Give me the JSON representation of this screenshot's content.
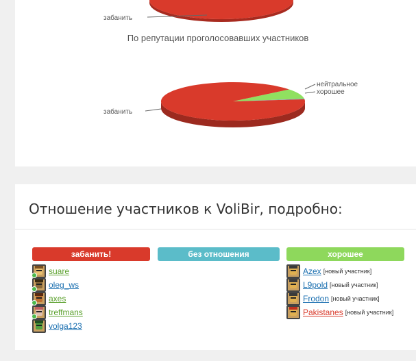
{
  "top_chart": {
    "label": "забанить"
  },
  "chart_data": {
    "type": "pie",
    "title": "По репутации проголосовавших участников",
    "slices": [
      {
        "name": "забанить",
        "value": 91,
        "color": "#d93a2b"
      },
      {
        "name": "нейтральное",
        "value": 0.5,
        "color": "#6ea8c8"
      },
      {
        "name": "хорошее",
        "value": 8.5,
        "color": "#90e060"
      }
    ]
  },
  "details": {
    "title": "Отношение участников к VoliBir, подробно:",
    "columns": [
      {
        "label": "забанить!",
        "color": "#d93a2b",
        "users": [
          {
            "name": "suare",
            "color": "#5aa02c",
            "online": true,
            "skin": "#e8c070",
            "hair": "#7a5020"
          },
          {
            "name": "oleg_ws",
            "color": "#1a6fb0",
            "online": true,
            "skin": "#8a6a3a",
            "hair": "#3a2a10"
          },
          {
            "name": "axes",
            "color": "#5aa02c",
            "online": true,
            "skin": "#c07030",
            "hair": "#5a2a10"
          },
          {
            "name": "treffmans",
            "color": "#5aa02c",
            "online": true,
            "skin": "#e0c0b0",
            "hair": "#c06060"
          },
          {
            "name": "volga123",
            "color": "#1a6fb0",
            "online": false,
            "skin": "#50a040",
            "hair": "#205020"
          }
        ]
      },
      {
        "label": "без отношения",
        "color": "#5bbcc9",
        "users": []
      },
      {
        "label": "хорошее",
        "color": "#8ed85c",
        "users": [
          {
            "name": "Azex",
            "tag": "[новый участник]",
            "color": "#1a6fb0",
            "online": false,
            "skin": "#e0b050",
            "hair": "#3a3a3a"
          },
          {
            "name": "L9pold",
            "tag": "[новый участник]",
            "color": "#1a6fb0",
            "online": false,
            "skin": "#e0b050",
            "hair": "#3a3a3a"
          },
          {
            "name": "Frodon",
            "tag": "[новый участник]",
            "color": "#1a6fb0",
            "online": false,
            "skin": "#e0b050",
            "hair": "#3a3a3a"
          },
          {
            "name": "Pakistanes",
            "tag": "[новый участник]",
            "color": "#d93a2b",
            "online": false,
            "skin": "#e0b050",
            "hair": "#c03020"
          }
        ]
      }
    ]
  }
}
